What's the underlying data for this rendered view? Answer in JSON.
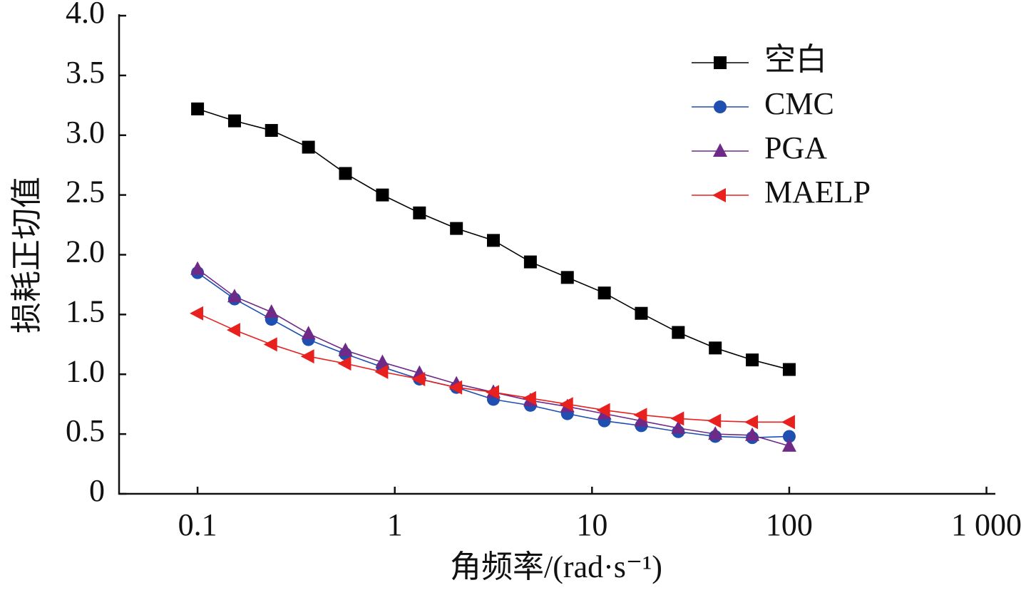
{
  "chart_data": {
    "type": "line",
    "xlabel": "角频率/(rad·s⁻¹)",
    "ylabel": "损耗正切值",
    "log_x": true,
    "x": [
      0.1,
      0.154,
      0.237,
      0.365,
      0.562,
      0.866,
      1.334,
      2.054,
      3.162,
      4.87,
      7.5,
      11.55,
      17.78,
      27.38,
      42.17,
      64.94,
      100
    ],
    "series": [
      {
        "name": "空白",
        "color": "#000000",
        "marker": "square",
        "values": [
          3.22,
          3.12,
          3.04,
          2.9,
          2.68,
          2.5,
          2.35,
          2.22,
          2.12,
          1.94,
          1.81,
          1.68,
          1.51,
          1.35,
          1.22,
          1.12,
          1.04
        ]
      },
      {
        "name": "CMC",
        "color": "#1f4fb0",
        "marker": "circle",
        "values": [
          1.85,
          1.63,
          1.46,
          1.29,
          1.17,
          1.06,
          0.96,
          0.89,
          0.79,
          0.74,
          0.67,
          0.61,
          0.57,
          0.52,
          0.48,
          0.47,
          0.48
        ]
      },
      {
        "name": "PGA",
        "color": "#6e2a86",
        "marker": "triangle-up",
        "values": [
          1.88,
          1.65,
          1.52,
          1.34,
          1.2,
          1.1,
          1.01,
          0.92,
          0.85,
          0.78,
          0.73,
          0.67,
          0.61,
          0.55,
          0.5,
          0.49,
          0.4
        ]
      },
      {
        "name": "MAELP",
        "color": "#e8201e",
        "marker": "triangle-left",
        "values": [
          1.51,
          1.37,
          1.25,
          1.15,
          1.09,
          1.02,
          0.96,
          0.89,
          0.85,
          0.8,
          0.75,
          0.7,
          0.66,
          0.63,
          0.61,
          0.6,
          0.6
        ]
      }
    ],
    "xlim": [
      0.04,
      1100
    ],
    "xticks": [
      0.1,
      1,
      10,
      100,
      {
        "value": 1000,
        "label": "1 000"
      }
    ],
    "ylim": [
      0,
      4
    ],
    "yticks": [
      0,
      0.5,
      {
        "value": 1,
        "label": "1.0"
      },
      1.5,
      {
        "value": 2,
        "label": "2.0"
      },
      2.5,
      {
        "value": 3,
        "label": "3.0"
      },
      3.5,
      {
        "value": 4,
        "label": "4.0"
      }
    ],
    "legend": "upper right"
  }
}
